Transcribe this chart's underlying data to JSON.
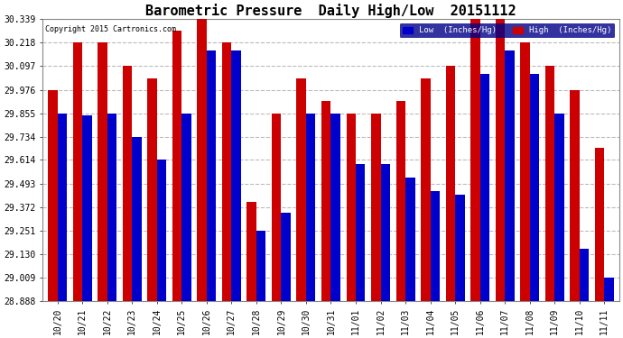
{
  "title": "Barometric Pressure  Daily High/Low  20151112",
  "copyright": "Copyright 2015 Cartronics.com",
  "legend_low": "Low  (Inches/Hg)",
  "legend_high": "High  (Inches/Hg)",
  "dates": [
    "10/20",
    "10/21",
    "10/22",
    "10/23",
    "10/24",
    "10/25",
    "10/26",
    "10/27",
    "10/28",
    "10/29",
    "10/30",
    "10/31",
    "11/01",
    "11/02",
    "11/03",
    "11/04",
    "11/05",
    "11/06",
    "11/07",
    "11/08",
    "11/09",
    "11/10",
    "11/11"
  ],
  "high_values": [
    29.976,
    30.218,
    30.218,
    30.097,
    30.036,
    30.28,
    30.339,
    30.218,
    29.4,
    29.855,
    30.036,
    29.916,
    29.855,
    29.855,
    29.916,
    30.036,
    30.097,
    30.339,
    30.339,
    30.218,
    30.097,
    29.976,
    29.675
  ],
  "low_values": [
    29.855,
    29.845,
    29.855,
    29.734,
    29.614,
    29.855,
    30.178,
    30.178,
    29.251,
    29.34,
    29.855,
    29.855,
    29.594,
    29.594,
    29.524,
    29.453,
    29.434,
    30.057,
    30.178,
    30.057,
    29.855,
    29.155,
    29.009
  ],
  "ymin": 28.888,
  "ymax": 30.339,
  "yticks": [
    28.888,
    29.009,
    29.13,
    29.251,
    29.372,
    29.493,
    29.614,
    29.734,
    29.855,
    29.976,
    30.097,
    30.218,
    30.339
  ],
  "low_color": "#0000cc",
  "high_color": "#cc0000",
  "bg_color": "#ffffff",
  "grid_color": "#bbbbbb",
  "title_fontsize": 11,
  "bar_width": 0.38
}
